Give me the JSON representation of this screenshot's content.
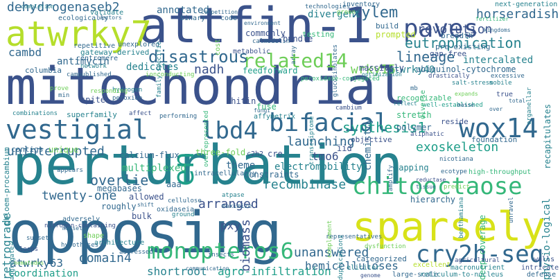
{
  "palette": {
    "c1": "#440154",
    "c2": "#3b528b",
    "c3": "#31688e",
    "c4": "#26828e",
    "c5": "#1f9e89",
    "c6": "#35b779",
    "c7": "#6ece58",
    "c8": "#b5de2b",
    "c9": "#d8e219"
  },
  "words": [
    {
      "text": "mitochondrial",
      "color": "#3b528b"
    },
    {
      "text": "perturbation",
      "color": "#26828e"
    },
    {
      "text": "opposing",
      "color": "#31688e"
    },
    {
      "text": "attfin-1",
      "color": "#3b528b"
    },
    {
      "text": "sparsely",
      "color": "#d8e219"
    },
    {
      "text": "atwrky7",
      "color": "#b5de2b"
    },
    {
      "text": "vestigial",
      "color": "#31688e"
    },
    {
      "text": "bifacial",
      "color": "#31688e"
    },
    {
      "text": "lbd4",
      "color": "#31688e"
    },
    {
      "text": "paves",
      "color": "#3b528b"
    },
    {
      "text": "wox14",
      "color": "#31688e"
    },
    {
      "text": "chitooctaose",
      "color": "#35b779"
    },
    {
      "text": "cry2h-seq",
      "color": "#31688e"
    },
    {
      "text": "monopteros6",
      "color": "#35b779"
    },
    {
      "text": "related14",
      "color": "#6ece58"
    },
    {
      "text": "en",
      "color": "#1f9e89"
    },
    {
      "text": "disastrous",
      "color": "#31688e"
    },
    {
      "text": "dehydrogenaseb2",
      "color": "#31688e"
    },
    {
      "text": "eutrophication",
      "color": "#26828e"
    },
    {
      "text": "xylem",
      "color": "#31688e"
    },
    {
      "text": "revolution",
      "color": "#3b528b"
    },
    {
      "text": "lineage",
      "color": "#31688e"
    },
    {
      "text": "synthesis1",
      "color": "#1f9e89"
    },
    {
      "text": "exoskeleton",
      "color": "#1f9e89"
    },
    {
      "text": "launching",
      "color": "#31688e"
    },
    {
      "text": "uninterrupted",
      "color": "#31688e"
    },
    {
      "text": "overlie",
      "color": "#31688e"
    },
    {
      "text": "twenty-one",
      "color": "#31688e"
    },
    {
      "text": "arranged",
      "color": "#3b528b"
    },
    {
      "text": "recombinase",
      "color": "#26828e"
    },
    {
      "text": "biomass",
      "color": "#3b528b"
    },
    {
      "text": "unanswered",
      "color": "#31688e"
    },
    {
      "text": "shortroot",
      "color": "#26828e"
    },
    {
      "text": "agro-infiltration",
      "color": "#1f9e89"
    },
    {
      "text": "hemicelluloses",
      "color": "#31688e"
    },
    {
      "text": "domain4",
      "color": "#31688e"
    },
    {
      "text": "atwrky63",
      "color": "#31688e"
    },
    {
      "text": "coordination",
      "color": "#1f9e89"
    },
    {
      "text": "retrograde",
      "color": "#26828e"
    },
    {
      "text": "multiplexed",
      "color": "#35b779"
    },
    {
      "text": "electromobility",
      "color": "#26828e"
    },
    {
      "text": "cambd",
      "color": "#31688e"
    },
    {
      "text": "antimycin",
      "color": "#31688e"
    },
    {
      "text": "nadh",
      "color": "#3b528b"
    },
    {
      "text": "dedicates",
      "color": "#26828e"
    },
    {
      "text": "wrky15",
      "color": "#6ece58"
    },
    {
      "text": "tmo6",
      "color": "#3b528b"
    },
    {
      "text": "atwrky40",
      "color": "#26828e"
    },
    {
      "text": "pxy",
      "color": "#3b528b"
    },
    {
      "text": "theme",
      "color": "#31688e"
    },
    {
      "text": "constraints",
      "color": "#31688e"
    },
    {
      "text": "chemistry",
      "color": "#31688e"
    },
    {
      "text": "physio-logical",
      "color": "#26828e"
    },
    {
      "text": "horseradish",
      "color": "#31688e"
    },
    {
      "text": "intercalated",
      "color": "#26828e"
    },
    {
      "text": "ubiquinol-cytochrome",
      "color": "#31688e"
    },
    {
      "text": "annotated",
      "color": "#31688e"
    },
    {
      "text": "divergent",
      "color": "#26828e"
    },
    {
      "text": "chitin",
      "color": "#3b528b"
    },
    {
      "text": "fuse",
      "color": "#35b779"
    },
    {
      "text": "bulk",
      "color": "#3b528b"
    },
    {
      "text": "roughly",
      "color": "#31688e"
    },
    {
      "text": "megabases",
      "color": "#31688e"
    },
    {
      "text": "allowed",
      "color": "#3b528b"
    },
    {
      "text": "aaa",
      "color": "#31688e"
    },
    {
      "text": "cre",
      "color": "#3b528b"
    },
    {
      "text": "iid",
      "color": "#3b528b"
    },
    {
      "text": "mapping",
      "color": "#26828e"
    },
    {
      "text": "hierarchy",
      "color": "#31688e"
    },
    {
      "text": "deep-coverage",
      "color": "#35b779"
    },
    {
      "text": "massively",
      "color": "#3b528b"
    },
    {
      "text": "prompted",
      "color": "#b5de2b"
    },
    {
      "text": "feedforward",
      "color": "#1f9e89"
    },
    {
      "text": "bundle",
      "color": "#3b528b"
    },
    {
      "text": "commonly",
      "color": "#3b528b"
    },
    {
      "text": "calcium-flux",
      "color": "#31688e"
    },
    {
      "text": "gateway-derived",
      "color": "#26828e"
    },
    {
      "text": "centromere",
      "color": "#31688e"
    },
    {
      "text": "columbia",
      "color": "#31688e"
    },
    {
      "text": "phloem-procambium",
      "color": "#26828e"
    },
    {
      "text": "spite",
      "color": "#3b528b"
    },
    {
      "text": "contigs",
      "color": "#31688e"
    },
    {
      "text": "unique",
      "color": "#6ece58"
    },
    {
      "text": "superfamily",
      "color": "#26828e"
    },
    {
      "text": "polymer",
      "color": "#31688e"
    },
    {
      "text": "stretch",
      "color": "#35b779"
    },
    {
      "text": "objective",
      "color": "#3b528b"
    },
    {
      "text": "reside",
      "color": "#3b528b"
    },
    {
      "text": "foundation",
      "color": "#31688e"
    },
    {
      "text": "recapitulates",
      "color": "#26828e"
    },
    {
      "text": "ecologically",
      "color": "#31688e"
    },
    {
      "text": "inventory",
      "color": "#31688e"
    },
    {
      "text": "technologies",
      "color": "#31688e"
    },
    {
      "text": "next-generation",
      "color": "#26828e"
    },
    {
      "text": "pre-existing",
      "color": "#31688e"
    },
    {
      "text": "gap-free",
      "color": "#3b528b"
    },
    {
      "text": "breadth",
      "color": "#31688e"
    },
    {
      "text": "testing",
      "color": "#35b779"
    },
    {
      "text": "build",
      "color": "#31688e"
    },
    {
      "text": "validate",
      "color": "#26828e"
    },
    {
      "text": "binary",
      "color": "#31688e"
    },
    {
      "text": "code",
      "color": "#31688e"
    },
    {
      "text": "cost",
      "color": "#6ece58"
    },
    {
      "text": "metabolic",
      "color": "#3b528b"
    },
    {
      "text": "unexplored",
      "color": "#31688e"
    },
    {
      "text": "repetitive",
      "color": "#31688e"
    },
    {
      "text": "published",
      "color": "#31688e"
    },
    {
      "text": "hydrogen",
      "color": "#26828e"
    },
    {
      "text": "peroxide",
      "color": "#31688e"
    },
    {
      "text": "affect",
      "color": "#3b528b"
    },
    {
      "text": "performing",
      "color": "#31688e"
    },
    {
      "text": "three-fold",
      "color": "#6ece58"
    },
    {
      "text": "c2h2",
      "color": "#3b528b"
    },
    {
      "text": "appears",
      "color": "#31688e"
    },
    {
      "text": "intracellularly",
      "color": "#31688e"
    },
    {
      "text": "cellulose",
      "color": "#31688e"
    },
    {
      "text": "atpase",
      "color": "#26828e"
    },
    {
      "text": "maximize",
      "color": "#31688e"
    },
    {
      "text": "oxidaseia",
      "color": "#31688e"
    },
    {
      "text": "ground",
      "color": "#26828e"
    },
    {
      "text": "adversely",
      "color": "#31688e"
    },
    {
      "text": "nitrogen-containing",
      "color": "#3b528b"
    },
    {
      "text": "subset",
      "color": "#31688e"
    },
    {
      "text": "aggregate",
      "color": "#26828e"
    },
    {
      "text": "loops",
      "color": "#3b528b"
    },
    {
      "text": "hypotheses",
      "color": "#31688e"
    },
    {
      "text": "shape",
      "color": "#6ece58"
    },
    {
      "text": "architecture",
      "color": "#26828e"
    },
    {
      "text": "addressed",
      "color": "#31688e"
    },
    {
      "text": "insects",
      "color": "#31688e"
    },
    {
      "text": "categorized",
      "color": "#31688e"
    },
    {
      "text": "elicitor",
      "color": "#26828e"
    },
    {
      "text": "excellent",
      "color": "#b5de2b"
    },
    {
      "text": "agricultural",
      "color": "#3b528b"
    },
    {
      "text": "macronutrient",
      "color": "#26828e"
    },
    {
      "text": "large-scale",
      "color": "#31688e"
    },
    {
      "text": "reticulum-to-nucleus",
      "color": "#26828e"
    },
    {
      "text": "walls",
      "color": "#3b528b"
    },
    {
      "text": "intricate",
      "color": "#3b528b"
    },
    {
      "text": "defense",
      "color": "#31688e"
    },
    {
      "text": "genome",
      "color": "#3b528b"
    },
    {
      "text": "dysfunction",
      "color": "#6ece58"
    },
    {
      "text": "representatives",
      "color": "#31688e"
    },
    {
      "text": "duplications",
      "color": "#26828e"
    },
    {
      "text": "ecotype",
      "color": "#31688e"
    },
    {
      "text": "predict",
      "color": "#6ece58"
    },
    {
      "text": "tissue",
      "color": "#31688e"
    },
    {
      "text": "reductase",
      "color": "#3b528b"
    },
    {
      "text": "nicotiana",
      "color": "#31688e"
    },
    {
      "text": "benthamiana",
      "color": "#26828e"
    },
    {
      "text": "high-throughput",
      "color": "#35b779"
    },
    {
      "text": "unravel",
      "color": "#31688e"
    },
    {
      "text": "recognizable",
      "color": "#35b779"
    },
    {
      "text": "well-established",
      "color": "#1f9e89"
    },
    {
      "text": "diverse",
      "color": "#35b779"
    },
    {
      "text": "salt-stress",
      "color": "#26828e"
    },
    {
      "text": "excessive",
      "color": "#31688e"
    },
    {
      "text": "mobile",
      "color": "#26828e"
    },
    {
      "text": "expands",
      "color": "#6ece58"
    },
    {
      "text": "true",
      "color": "#3b528b"
    },
    {
      "text": "completion",
      "color": "#26828e"
    },
    {
      "text": "vectors",
      "color": "#31688e"
    },
    {
      "text": "family-specific",
      "color": "#26828e"
    },
    {
      "text": "competition",
      "color": "#31688e"
    },
    {
      "text": "environment",
      "color": "#31688e"
    },
    {
      "text": "calmodulin",
      "color": "#31688e"
    },
    {
      "text": "glucosinolates",
      "color": "#31688e"
    },
    {
      "text": "array",
      "color": "#31688e"
    },
    {
      "text": "green",
      "color": "#6ece58"
    },
    {
      "text": "optimization",
      "color": "#26828e"
    },
    {
      "text": "fertilizer",
      "color": "#35b779"
    },
    {
      "text": "kingdoms",
      "color": "#31688e"
    },
    {
      "text": "drastically",
      "color": "#3b528b"
    },
    {
      "text": "organellar",
      "color": "#26828e"
    },
    {
      "text": "total",
      "color": "#31688e"
    },
    {
      "text": "over",
      "color": "#31688e"
    },
    {
      "text": "overrepresented",
      "color": "#35b779"
    },
    {
      "text": "peroxidase-conjugated",
      "color": "#35b779"
    },
    {
      "text": "transcriptome",
      "color": "#26828e"
    },
    {
      "text": "cambium",
      "color": "#3b528b"
    },
    {
      "text": "fungi",
      "color": "#31688e"
    },
    {
      "text": "affymetrix",
      "color": "#26828e"
    },
    {
      "text": "network",
      "color": "#26828e"
    },
    {
      "text": "cam",
      "color": "#31688e"
    },
    {
      "text": "ionconducting",
      "color": "#6ece58"
    },
    {
      "text": "prove",
      "color": "#6ece58"
    },
    {
      "text": "responding",
      "color": "#6ece58"
    },
    {
      "text": "min",
      "color": "#31688e"
    },
    {
      "text": "combinations",
      "color": "#26828e"
    },
    {
      "text": "nematodes",
      "color": "#6ece58"
    },
    {
      "text": "communication",
      "color": "#31688e"
    },
    {
      "text": "mussel",
      "color": "#31688e"
    },
    {
      "text": "shift",
      "color": "#31688e"
    },
    {
      "text": "complement",
      "color": "#6ece58"
    },
    {
      "text": "amplify",
      "color": "#31688e"
    },
    {
      "text": "aliphatic",
      "color": "#3b528b"
    },
    {
      "text": "mb",
      "color": "#31688e"
    },
    {
      "text": "reflect",
      "color": "#26828e"
    },
    {
      "text": "masse",
      "color": "#31688e"
    }
  ]
}
